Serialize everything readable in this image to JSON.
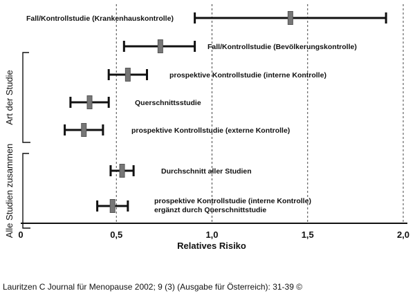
{
  "chart_data": {
    "type": "forest",
    "xlabel": "Relatives Risiko",
    "xlim": [
      0,
      2.0
    ],
    "x_ticks": [
      {
        "value": 0,
        "label": "0"
      },
      {
        "value": 0.5,
        "label": "0,5"
      },
      {
        "value": 1.0,
        "label": "1,0"
      },
      {
        "value": 1.5,
        "label": "1,5"
      },
      {
        "value": 2.0,
        "label": "2,0"
      }
    ],
    "gridlines": "dashed-vertical",
    "groups": [
      {
        "label": "Art der Studie",
        "rows": [
          0,
          4
        ]
      },
      {
        "label": "Alle Studien zusammen",
        "rows": [
          5,
          6
        ]
      }
    ],
    "studies": [
      {
        "label": [
          "Fall/Kontrollstudie (Krankenhauskontrolle)"
        ],
        "estimate": 1.41,
        "ci_low": 0.91,
        "ci_high": 1.91,
        "label_side": "left"
      },
      {
        "label": [
          "Fall/Kontrollstudie (Bevölkerungskontrolle)"
        ],
        "estimate": 0.73,
        "ci_low": 0.54,
        "ci_high": 0.91,
        "label_side": "right"
      },
      {
        "label": [
          "prospektive Kontrollstudie (interne Kontrolle)"
        ],
        "estimate": 0.56,
        "ci_low": 0.46,
        "ci_high": 0.66,
        "label_side": "right"
      },
      {
        "label": [
          "Querschnittsstudie"
        ],
        "estimate": 0.36,
        "ci_low": 0.26,
        "ci_high": 0.46,
        "label_side": "right"
      },
      {
        "label": [
          "prospektive Kontrollstudie (externe Kontrolle)"
        ],
        "estimate": 0.33,
        "ci_low": 0.23,
        "ci_high": 0.43,
        "label_side": "right"
      },
      {
        "label": [
          "Durchschnitt aller Studien"
        ],
        "estimate": 0.53,
        "ci_low": 0.47,
        "ci_high": 0.59,
        "label_side": "right"
      },
      {
        "label": [
          "prospektive Kontrollstudie (interne Kontrolle)",
          "ergänzt durch Querschnittstudie"
        ],
        "estimate": 0.48,
        "ci_low": 0.4,
        "ci_high": 0.56,
        "label_side": "right"
      }
    ]
  },
  "caption": "Lauritzen C Journal für Menopause 2002; 9 (3) (Ausgabe für Österreich): 31-39 ©"
}
